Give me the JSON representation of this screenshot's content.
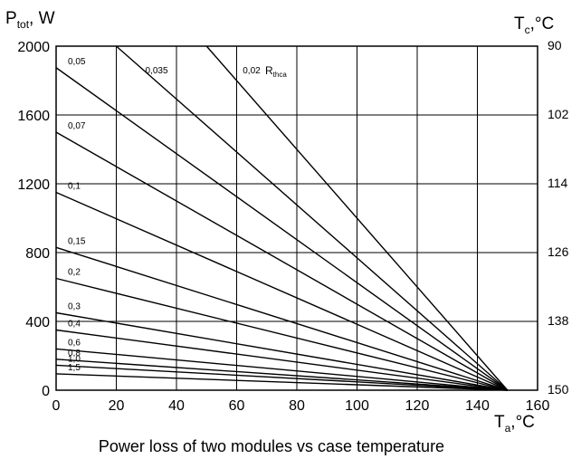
{
  "chart_data": {
    "type": "line",
    "title": "",
    "caption": "Power loss of two modules vs case temperature",
    "xlabel": {
      "main": "T",
      "sub": "a",
      "unit": ",°C"
    },
    "ylabel": {
      "main": "P",
      "sub": "tot",
      "unit": ", W"
    },
    "y2label": {
      "main": "T",
      "sub": "c",
      "unit": ",°C"
    },
    "xlim": [
      0,
      160
    ],
    "ylim": [
      0,
      2000
    ],
    "x_ticks": [
      "0",
      "20",
      "40",
      "60",
      "80",
      "100",
      "120",
      "140",
      "160"
    ],
    "y_ticks": [
      "0",
      "400",
      "800",
      "1200",
      "1600",
      "2000"
    ],
    "y2_ticks": [
      "150",
      "138",
      "126",
      "114",
      "102",
      "90"
    ],
    "grid": true,
    "series_label": {
      "main": "R",
      "sub": "thca"
    },
    "series_labels": [
      "0,02",
      "0,035",
      "0,05",
      "0,07",
      "0,1",
      "0,15",
      "0,2",
      "0,3",
      "0,4",
      "0,6",
      "0,8",
      "1,0",
      "1,5"
    ],
    "series": [
      {
        "name": "0,02",
        "x": [
          50,
          150
        ],
        "y": [
          2000,
          0
        ]
      },
      {
        "name": "0,035",
        "x": [
          20,
          150
        ],
        "y": [
          2000,
          0
        ]
      },
      {
        "name": "0,05",
        "x": [
          0,
          150
        ],
        "y": [
          1875,
          0
        ]
      },
      {
        "name": "0,07",
        "x": [
          0,
          150
        ],
        "y": [
          1500,
          0
        ]
      },
      {
        "name": "0,1",
        "x": [
          0,
          150
        ],
        "y": [
          1150,
          0
        ]
      },
      {
        "name": "0,15",
        "x": [
          0,
          150
        ],
        "y": [
          830,
          0
        ]
      },
      {
        "name": "0,2",
        "x": [
          0,
          150
        ],
        "y": [
          650,
          0
        ]
      },
      {
        "name": "0,3",
        "x": [
          0,
          150
        ],
        "y": [
          450,
          0
        ]
      },
      {
        "name": "0,4",
        "x": [
          0,
          150
        ],
        "y": [
          350,
          0
        ]
      },
      {
        "name": "0,6",
        "x": [
          0,
          150
        ],
        "y": [
          240,
          0
        ]
      },
      {
        "name": "0,8",
        "x": [
          0,
          150
        ],
        "y": [
          180,
          0
        ]
      },
      {
        "name": "1,0",
        "x": [
          0,
          150
        ],
        "y": [
          145,
          0
        ]
      },
      {
        "name": "1,5",
        "x": [
          0,
          150
        ],
        "y": [
          95,
          0
        ]
      }
    ]
  }
}
